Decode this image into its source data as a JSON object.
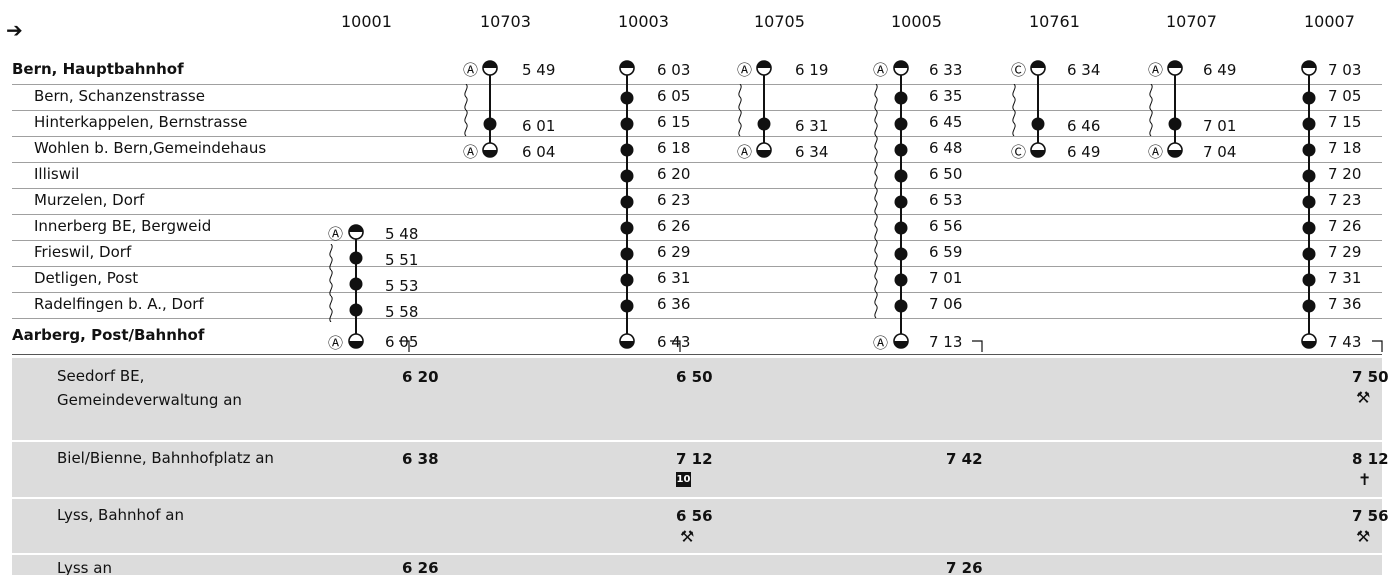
{
  "arrow": "➔",
  "trains": [
    "10001",
    "10703",
    "10003",
    "10705",
    "10005",
    "10761",
    "10707",
    "10007"
  ],
  "stops": [
    "Bern, Hauptbahnhof",
    "Bern, Schanzenstrasse",
    "Hinterkappelen, Bernstrasse",
    "Wohlen b. Bern,Gemeindehaus",
    "Illiswil",
    "Murzelen, Dorf",
    "Innerberg BE, Bergweid",
    "Frieswil, Dorf",
    "Detligen, Post",
    "Radelfingen b. A., Dorf",
    "Aarberg, Post/Bahnhof"
  ],
  "times": {
    "c1": [
      "5 48",
      "5 51",
      "5 53",
      "5 58",
      "6 05"
    ],
    "c2": [
      "5 49",
      "6 01",
      "6 04"
    ],
    "c3": [
      "6 03",
      "6 05",
      "6 15",
      "6 18",
      "6 20",
      "6 23",
      "6 26",
      "6 29",
      "6 31",
      "6 36",
      "6 43"
    ],
    "c4": [
      "6 19",
      "6 31",
      "6 34"
    ],
    "c5": [
      "6 33",
      "6 35",
      "6 45",
      "6 48",
      "6 50",
      "6 53",
      "6 56",
      "6 59",
      "7 01",
      "7 06",
      "7 13"
    ],
    "c6": [
      "6 34",
      "6 46",
      "6 49"
    ],
    "c7": [
      "6 49",
      "7 01",
      "7 04"
    ],
    "c8": [
      "7 03",
      "7 05",
      "7 15",
      "7 18",
      "7 20",
      "7 23",
      "7 26",
      "7 29",
      "7 31",
      "7 36",
      "7 43"
    ]
  },
  "marks": {
    "A": "Ⓐ",
    "C": "Ⓒ"
  },
  "connections": [
    {
      "label1": "Seedorf BE,",
      "label2": "Gemeindeverwaltung an",
      "t1": "6 20",
      "t3": "6 50",
      "t8": "7 50",
      "note8": "⚒"
    },
    {
      "label1": "Biel/Bienne, Bahnhofplatz an",
      "t1": "6 38",
      "t3": "7 12",
      "badge3": "10",
      "t5": "7 42",
      "t8": "8 12",
      "note8": "✝"
    },
    {
      "label1": "Lyss, Bahnhof an",
      "t3": "6 56",
      "note3": "⚒",
      "t8": "7 56",
      "note8": "⚒"
    },
    {
      "label1": "Lyss an",
      "t1": "6 26",
      "t5": "7 26"
    }
  ]
}
